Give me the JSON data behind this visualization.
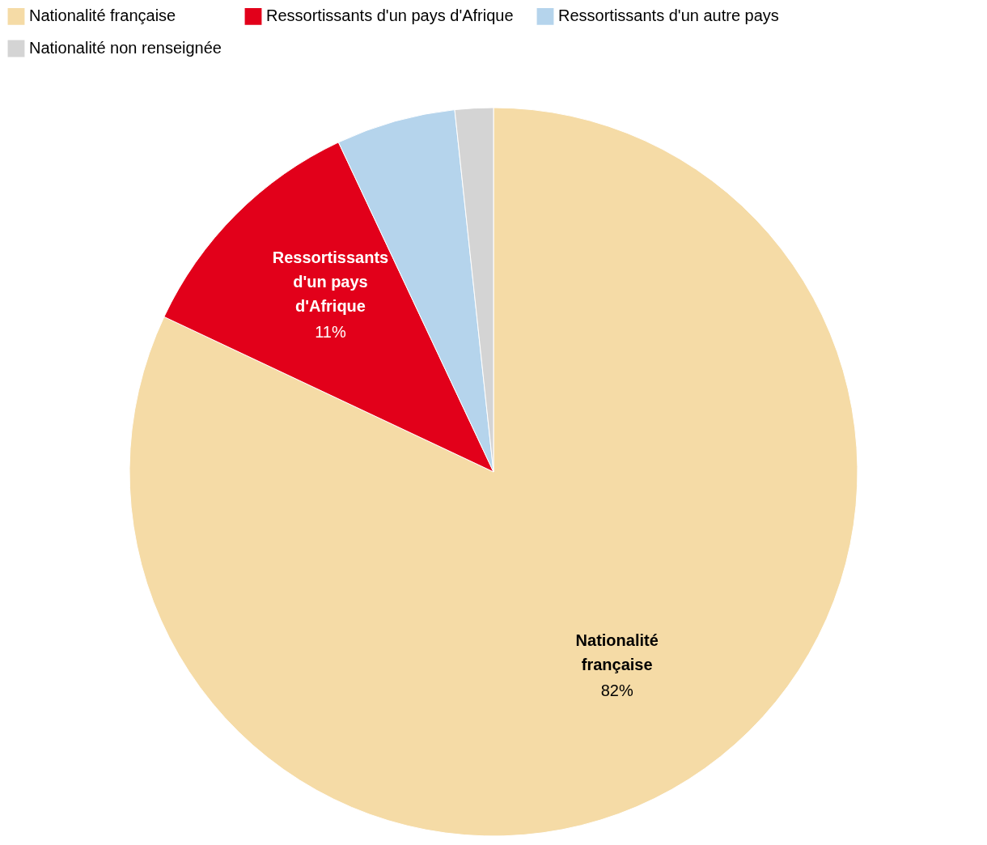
{
  "chart_data": {
    "type": "pie",
    "categories": [
      "Nationalité française",
      "Ressortissants d'un pays d'Afrique",
      "Ressortissants d'un autre pays",
      "Nationalité non renseignée"
    ],
    "values": [
      82,
      11,
      5.3,
      1.7
    ],
    "colors": [
      "#f5dba6",
      "#e2001a",
      "#b5d4ec",
      "#d4d4d4"
    ],
    "value_labels": [
      "82%",
      "11%",
      null,
      null
    ],
    "legend": "top left"
  }
}
